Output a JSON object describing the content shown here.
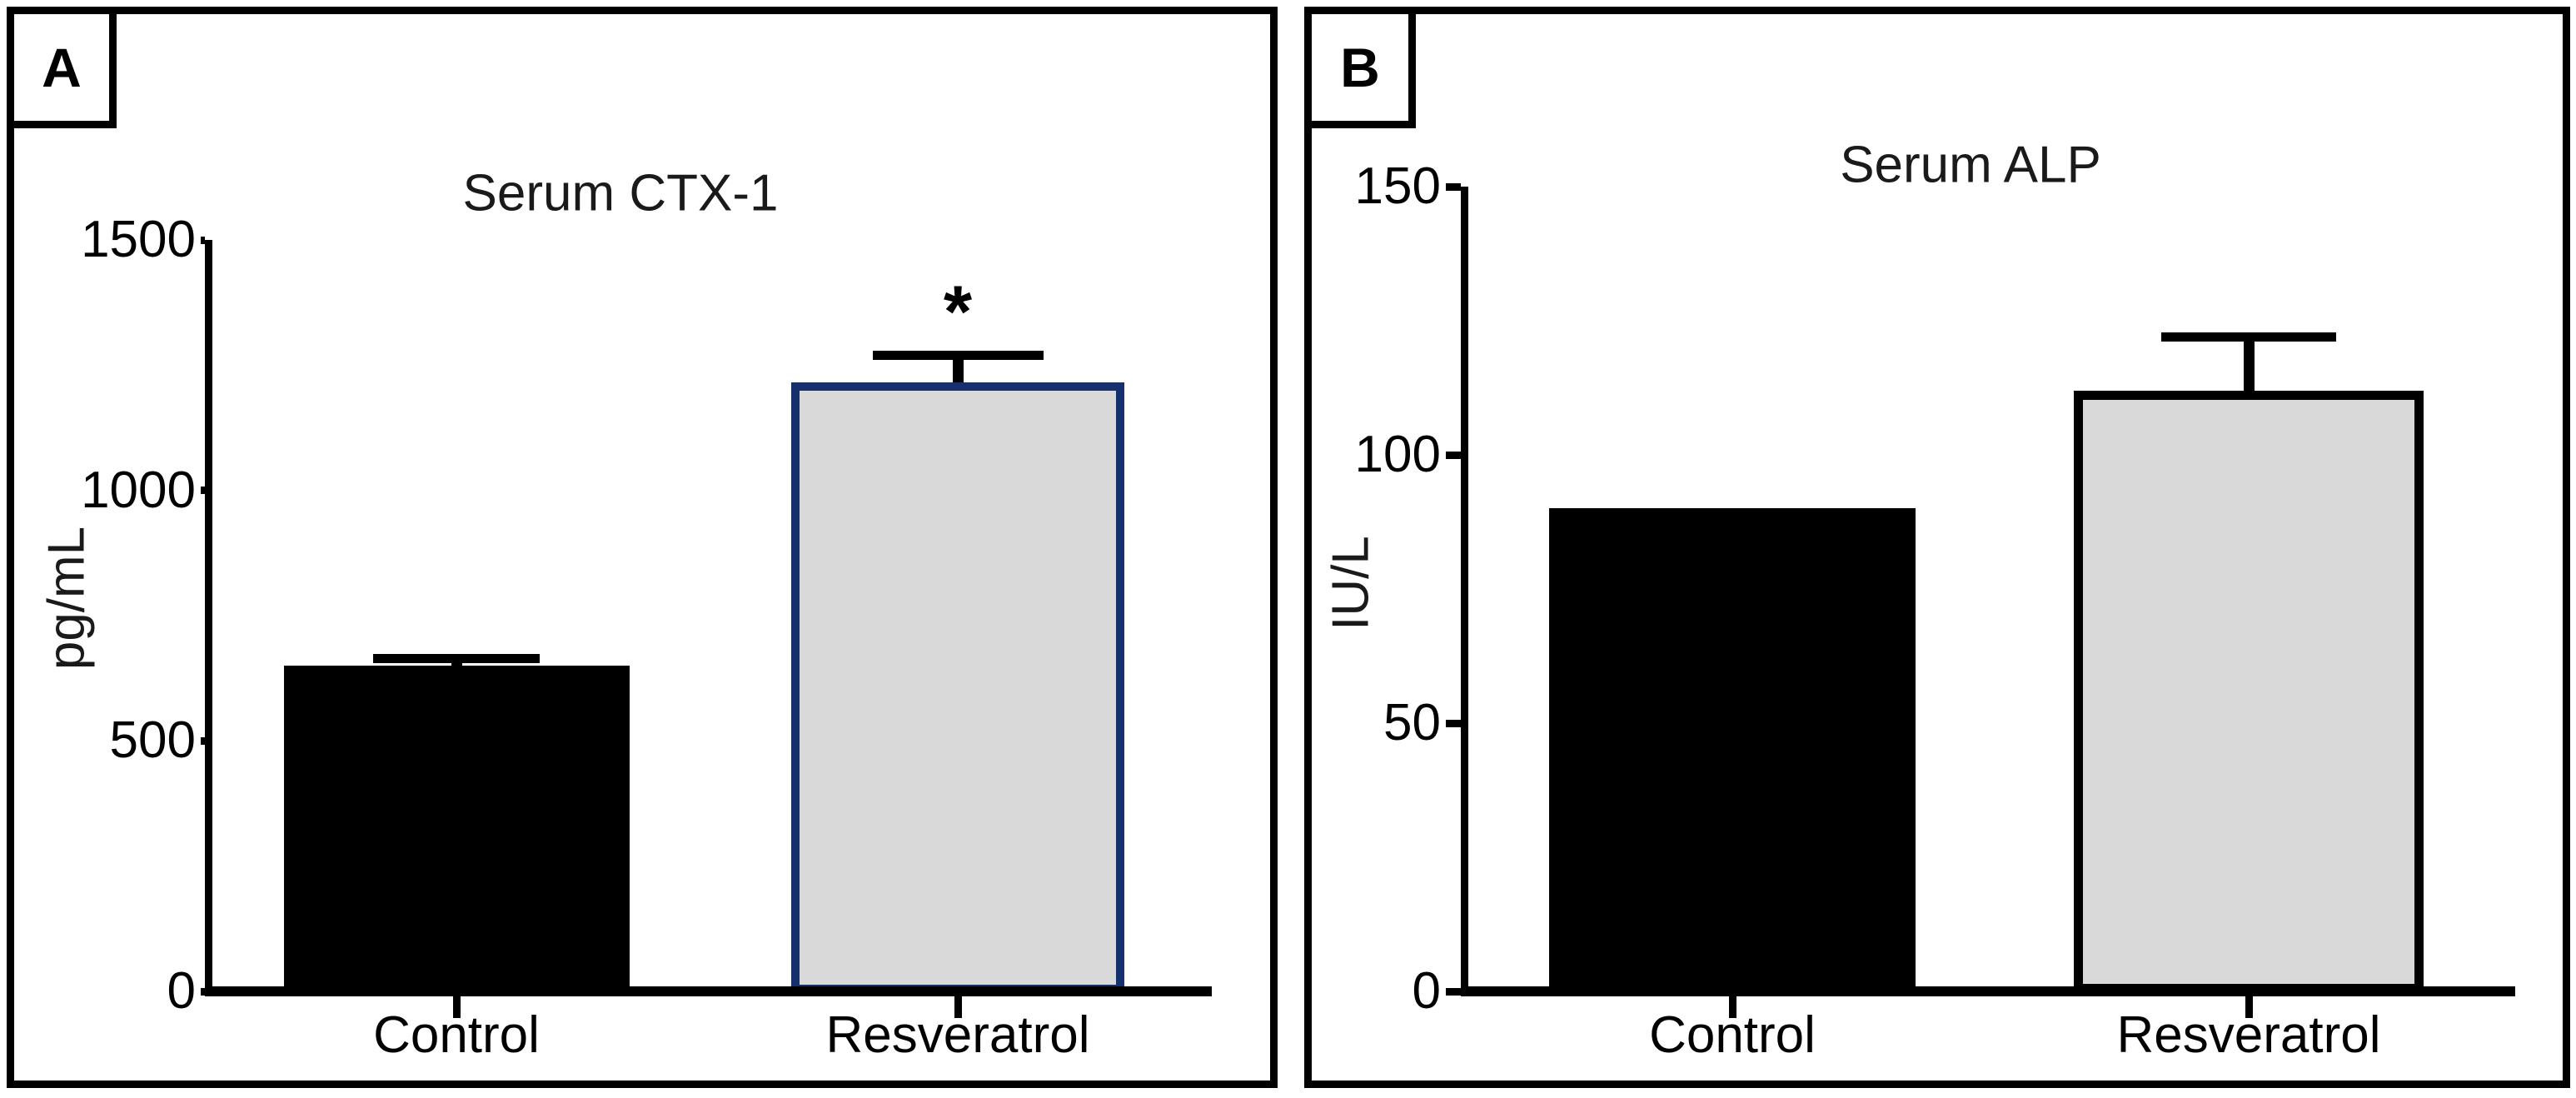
{
  "figure_title": "",
  "chart_data": [
    {
      "type": "bar",
      "panel_label": "A",
      "title": "Serum CTX-1",
      "ylabel": "pg/mL",
      "xlabel": "",
      "categories": [
        "Control",
        "Resveratrol"
      ],
      "values": [
        650,
        1215
      ],
      "errors_plus": [
        15,
        55
      ],
      "significance": [
        "",
        "*"
      ],
      "yticks": [
        0,
        500,
        1000,
        1500
      ],
      "ylim": [
        0,
        1500
      ],
      "grid": false,
      "legend": "none",
      "bar_fills": [
        "#000000",
        "#d9d9d9"
      ],
      "bar_borders": [
        "#000000",
        "#16306e"
      ]
    },
    {
      "type": "bar",
      "panel_label": "B",
      "title": "Serum ALP",
      "ylabel": "IU/L",
      "xlabel": "",
      "categories": [
        "Control",
        "Resveratrol"
      ],
      "values": [
        90,
        112
      ],
      "errors_plus": [
        0,
        10
      ],
      "significance": [
        "",
        ""
      ],
      "yticks": [
        0,
        50,
        100,
        150
      ],
      "ylim": [
        0,
        150
      ],
      "grid": false,
      "legend": "none",
      "bar_fills": [
        "#000000",
        "#d9d9d9"
      ],
      "bar_borders": [
        "#000000",
        "#000000"
      ]
    }
  ],
  "colors": {
    "axis": "#000000",
    "panel_border": "#000000",
    "background": "#ffffff",
    "control_bar": "#000000",
    "treatment_bar_fill": "#d9d9d9",
    "treatment_bar_border_panel_a": "#16306e"
  }
}
